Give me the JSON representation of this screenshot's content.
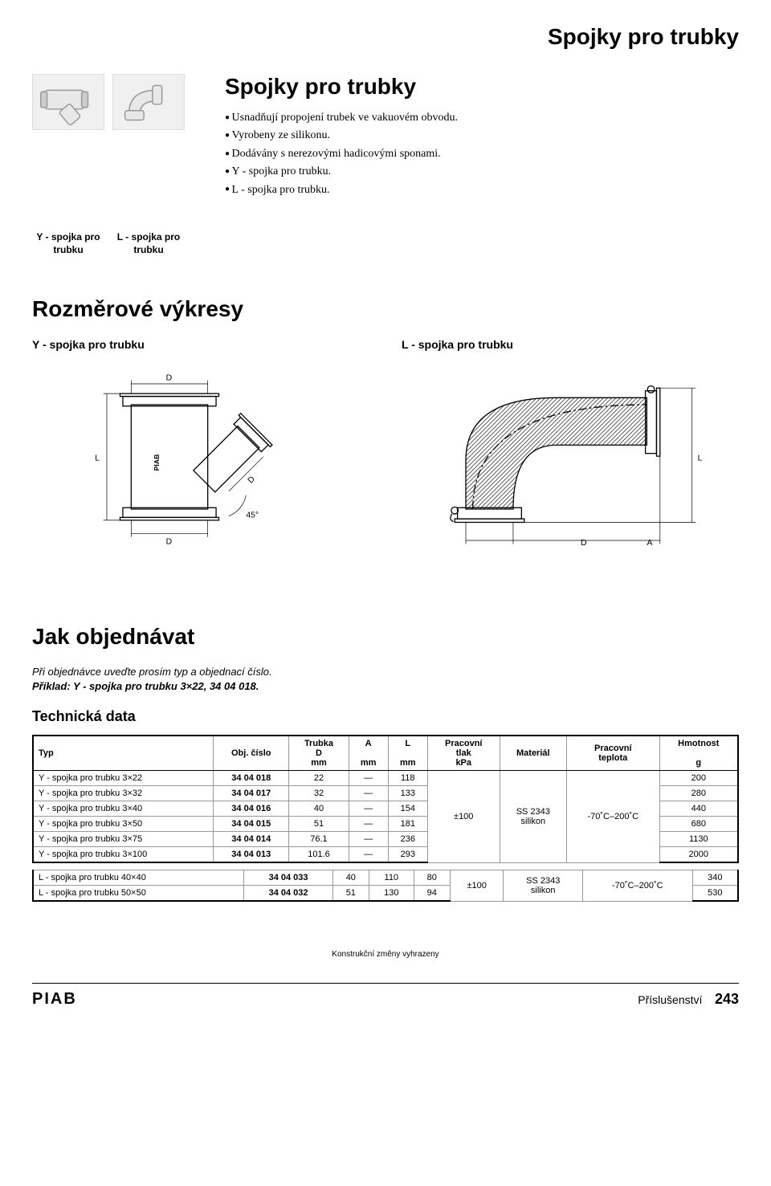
{
  "header_title": "Spojky pro trubky",
  "intro": {
    "title": "Spojky pro trubky",
    "bullets": [
      "Usnadňují propojení trubek ve vakuovém obvodu.",
      "Vyrobeny ze silikonu.",
      "Dodávány s nerezovými hadicovými sponami.",
      "Y - spojka pro trubku.",
      "L - spojka pro trubku."
    ]
  },
  "captions": {
    "y": "Y - spojka pro trubku",
    "l": "L - spojka pro trubku"
  },
  "drawings": {
    "section_title": "Rozměrové výkresy",
    "y_label": "Y - spojka pro trubku",
    "l_label": "L - spojka pro trubku",
    "dim_labels": {
      "D": "D",
      "L": "L",
      "A": "A",
      "angle": "45°"
    }
  },
  "ordering": {
    "title": "Jak objednávat",
    "instruction": "Při objednávce uveďte prosím typ a objednací číslo.",
    "example": "Příklad: Y - spojka pro trubku 3×22, 34 04 018."
  },
  "tech_data_title": "Technická data",
  "table": {
    "columns": [
      "Typ",
      "Obj. číslo",
      "Trubka\nD\nmm",
      "A\n\nmm",
      "L\n\nmm",
      "Pracovní\ntlak\nkPa",
      "Materiál",
      "Pracovní\nteplota",
      "Hmotnost\n\ng"
    ],
    "y_rows": [
      [
        "Y - spojka pro trubku 3×22",
        "34 04 018",
        "22",
        "—",
        "118",
        "200"
      ],
      [
        "Y - spojka pro trubku 3×32",
        "34 04 017",
        "32",
        "—",
        "133",
        "280"
      ],
      [
        "Y - spojka pro trubku 3×40",
        "34 04 016",
        "40",
        "—",
        "154",
        "440"
      ],
      [
        "Y - spojka pro trubku 3×50",
        "34 04 015",
        "51",
        "—",
        "181",
        "680"
      ],
      [
        "Y - spojka pro trubku 3×75",
        "34 04 014",
        "76.1",
        "—",
        "236",
        "1130"
      ],
      [
        "Y - spojka pro trubku 3×100",
        "34 04 013",
        "101.6",
        "—",
        "293",
        "2000"
      ]
    ],
    "y_merged": {
      "tlak": "±100",
      "material": "SS 2343\nsilikon",
      "teplota": "-70˚C–200˚C"
    },
    "l_rows": [
      [
        "L - spojka pro trubku 40×40",
        "34 04 033",
        "40",
        "110",
        "80",
        "340"
      ],
      [
        "L - spojka pro trubku 50×50",
        "34 04 032",
        "51",
        "130",
        "94",
        "530"
      ]
    ],
    "l_merged": {
      "tlak": "±100",
      "material": "SS 2343\nsilikon",
      "teplota": "-70˚C–200˚C"
    }
  },
  "footer": {
    "note": "Konstrukční změny vyhrazeny",
    "logo": "PIAB",
    "section": "Příslušenství",
    "page": "243"
  },
  "colors": {
    "text": "#000000",
    "bg": "#ffffff",
    "line": "#000000",
    "hatch": "#000000",
    "placeholder_bg": "#f0f0f0"
  }
}
